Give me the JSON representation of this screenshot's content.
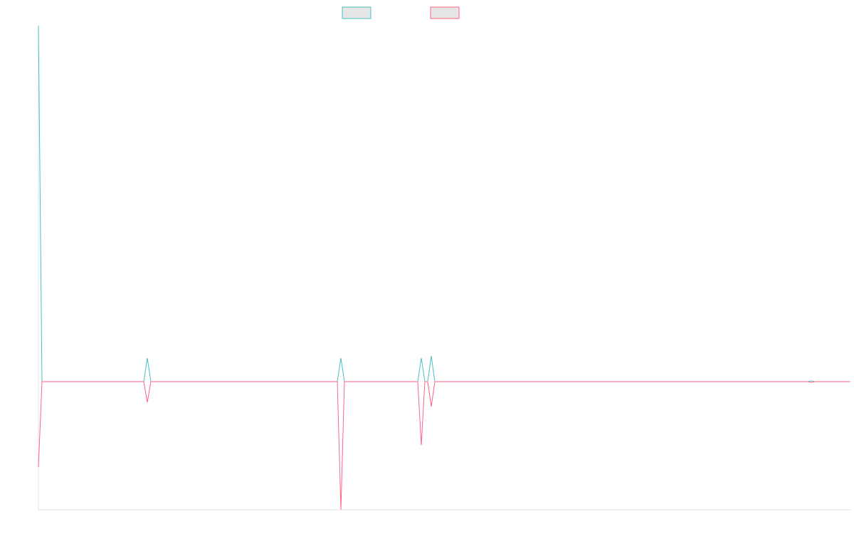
{
  "chart_data": {
    "type": "line",
    "x": [
      0,
      5,
      148,
      153,
      158,
      420,
      425,
      430,
      533,
      538,
      543,
      547,
      552,
      557,
      1081,
      1086,
      1091,
      1141
    ],
    "series": [
      {
        "color": "#4bc0c0",
        "values": [
          500,
          0,
          0,
          33,
          0,
          0,
          33,
          0,
          0,
          33,
          0,
          0,
          36,
          0,
          0,
          1,
          0,
          0
        ]
      },
      {
        "color": "#ff6384",
        "values": [
          -120,
          0,
          0,
          -29,
          0,
          0,
          -180,
          0,
          0,
          -89,
          0,
          0,
          -35,
          0,
          0,
          -1,
          0,
          0
        ]
      }
    ],
    "xlim": [
      0,
      1141
    ],
    "ylim": [
      -180,
      500
    ],
    "legend": "top"
  }
}
